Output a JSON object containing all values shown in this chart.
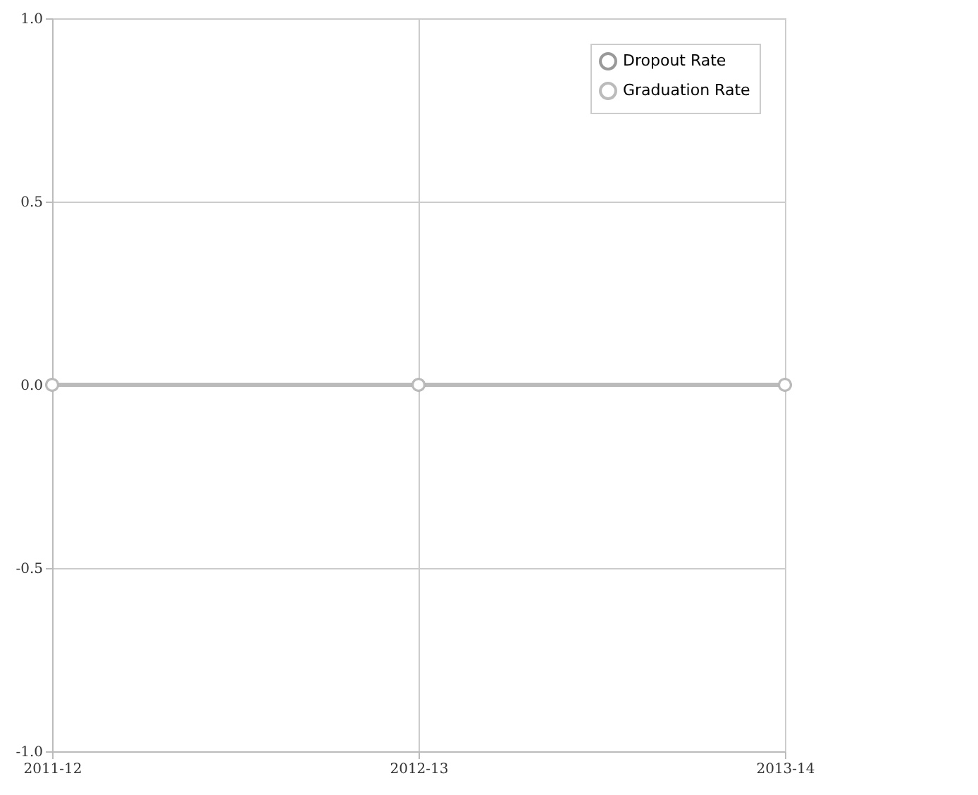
{
  "chart_data": {
    "type": "line",
    "categories": [
      "2011-12",
      "2012-13",
      "2013-14"
    ],
    "series": [
      {
        "name": "Dropout Rate",
        "color": "#999999",
        "values": [
          0,
          0,
          0
        ]
      },
      {
        "name": "Graduation Rate",
        "color": "#bbbbbb",
        "values": [
          0,
          0,
          0
        ]
      }
    ],
    "ylim": [
      -1,
      1
    ],
    "yticks": [
      {
        "value": -1,
        "label": "-1.0"
      },
      {
        "value": -0.5,
        "label": "-0.5"
      },
      {
        "value": 0,
        "label": "0.0"
      },
      {
        "value": 0.5,
        "label": "0.5"
      },
      {
        "value": 1,
        "label": "1.0"
      }
    ],
    "grid": true,
    "legend": "top right",
    "marker": "circle"
  }
}
